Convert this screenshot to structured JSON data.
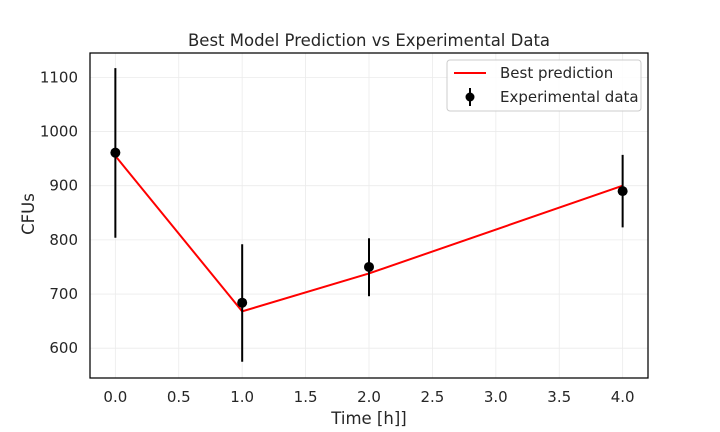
{
  "chart_data": {
    "type": "line",
    "title": "Best Model Prediction vs Experimental Data",
    "xlabel": "Time [h]]",
    "ylabel": "CFUs",
    "xlim": [
      -0.2,
      4.2
    ],
    "ylim": [
      545,
      1145
    ],
    "xticks": [
      0.0,
      0.5,
      1.0,
      1.5,
      2.0,
      2.5,
      3.0,
      3.5,
      4.0
    ],
    "xtick_labels": [
      "0.0",
      "0.5",
      "1.0",
      "1.5",
      "2.0",
      "2.5",
      "3.0",
      "3.5",
      "4.0"
    ],
    "yticks": [
      600,
      700,
      800,
      900,
      1000,
      1100
    ],
    "ytick_labels": [
      "600",
      "700",
      "800",
      "900",
      "1000",
      "1100"
    ],
    "grid": true,
    "legend_position": "top-right",
    "series": [
      {
        "name": "Best prediction",
        "kind": "line",
        "color": "#ff0000",
        "x": [
          0.0,
          1.0,
          2.0,
          4.0
        ],
        "y": [
          955,
          668,
          738,
          900
        ]
      },
      {
        "name": "Experimental data",
        "kind": "errorbar",
        "color": "#000000",
        "x": [
          0.0,
          1.0,
          2.0,
          4.0
        ],
        "y": [
          961,
          684,
          750,
          890
        ],
        "yerr_low": [
          804,
          575,
          696,
          823
        ],
        "yerr_high": [
          1117,
          792,
          803,
          957
        ]
      }
    ]
  }
}
